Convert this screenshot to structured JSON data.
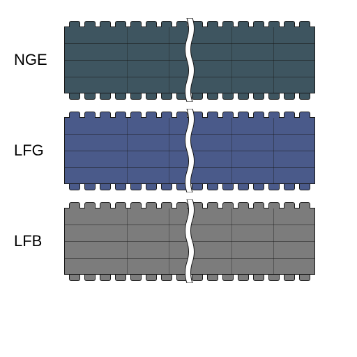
{
  "diagram": {
    "type": "infographic",
    "background_color": "#ffffff",
    "label_fontsize": 22,
    "label_color": "#000000",
    "stroke_color": "#1a1a1a",
    "belt_width": 360,
    "belt_height": 112,
    "lug_count": 16,
    "horizontal_rows": 3,
    "break_gap_color": "#ffffff",
    "items": [
      {
        "key": "nge",
        "label": "NGE",
        "fill": "#3e5560"
      },
      {
        "key": "lfg",
        "label": "LFG",
        "fill": "#4a5a8a"
      },
      {
        "key": "lfb",
        "label": "LFB",
        "fill": "#7c7c7c"
      }
    ]
  }
}
